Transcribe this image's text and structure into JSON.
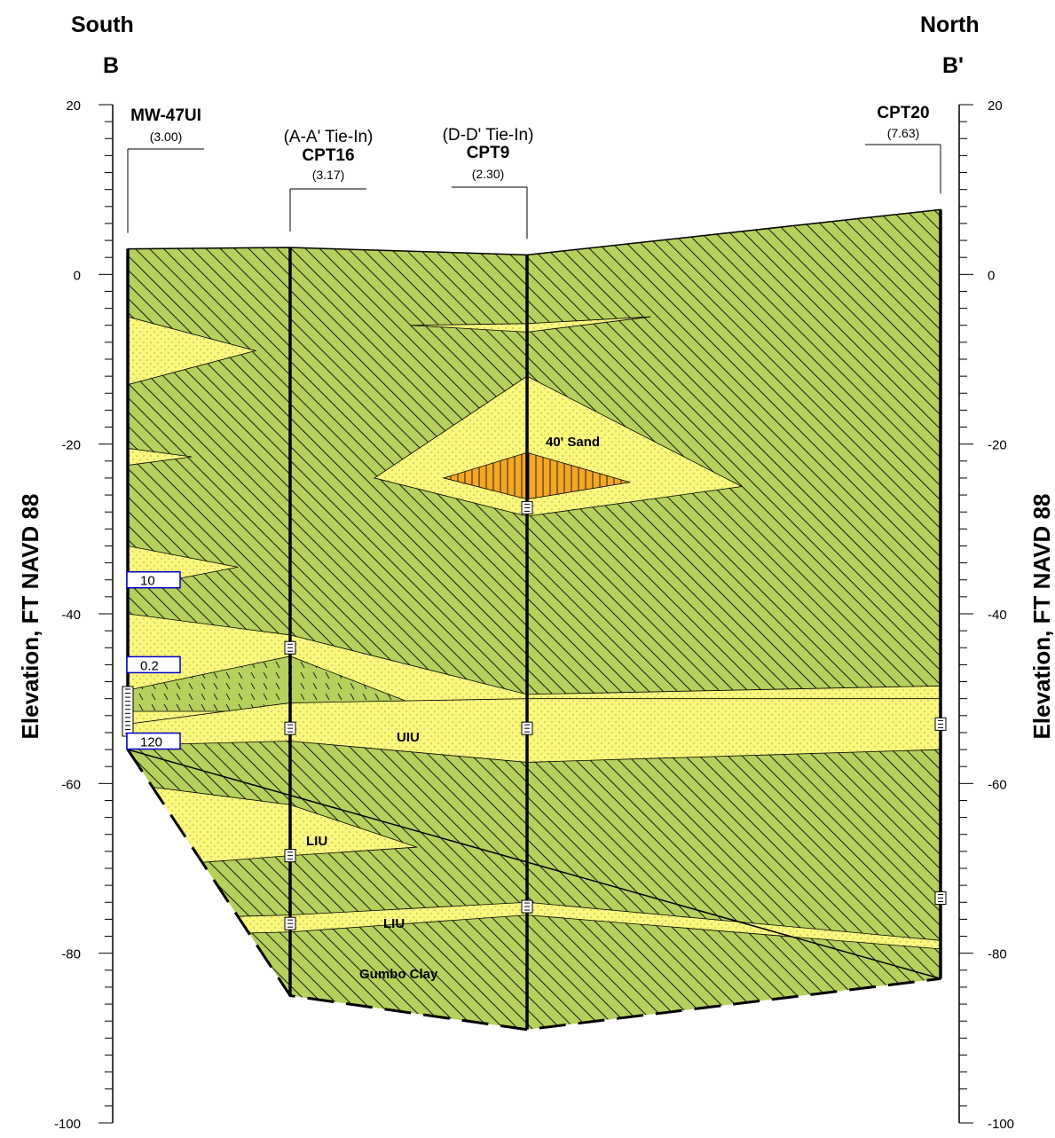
{
  "header": {
    "left_direction": "South",
    "right_direction": "North",
    "left_section": "B",
    "right_section": "B'"
  },
  "axis": {
    "title": "Elevation, FT NAVD 88",
    "min": -100,
    "max": 20,
    "major_step": 20,
    "minor_step": 2,
    "tick_labels": [
      "20",
      "0",
      "-20",
      "-40",
      "-60",
      "-80",
      "-100"
    ]
  },
  "borings": [
    {
      "name": "MW-47UI",
      "elevation_label": "(3.00)",
      "top": 3.0,
      "bottom": -56
    },
    {
      "tie_in": "(A-A' Tie-In)",
      "name": "CPT16",
      "elevation_label": "(3.17)",
      "top": 3.17,
      "bottom": -85
    },
    {
      "tie_in": "(D-D' Tie-In)",
      "name": "CPT9",
      "elevation_label": "(2.30)",
      "top": 2.3,
      "bottom": -89
    },
    {
      "name": "CPT20",
      "elevation_label": "(7.63)",
      "top": 7.63,
      "bottom": -83
    }
  ],
  "units": {
    "sand_40": "40' Sand",
    "uiu": "UIU",
    "liu_upper": "LIU",
    "liu_lower": "LIU",
    "gumbo": "Gumbo Clay"
  },
  "boxes": [
    {
      "label": "10",
      "elevation": -36
    },
    {
      "label": "0.2",
      "elevation": -46
    },
    {
      "label": "120",
      "elevation": -55
    }
  ],
  "colors": {
    "clay": "#b5d15b",
    "sand": "#fbf87a",
    "orange_sand": "#f5a623",
    "box_border": "#0000cc",
    "line": "#000000"
  }
}
